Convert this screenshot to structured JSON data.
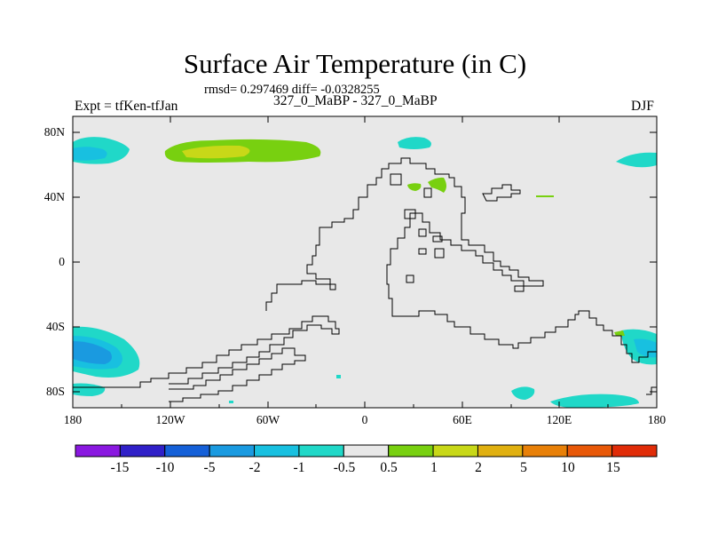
{
  "title": "Surface Air Temperature (in C)",
  "subtitle": "rmsd= 0.297469 diff= -0.0328255",
  "left_label": "Expt = tfKen-tfJan",
  "center_label": "327_0_MaBP - 327_0_MaBP",
  "right_label": "DJF",
  "map": {
    "background": "#e8e8e8",
    "y_ticks": [
      "80N",
      "40N",
      "0",
      "40S",
      "80S"
    ],
    "x_ticks": [
      "180",
      "120W",
      "60W",
      "0",
      "60E",
      "120E",
      "180"
    ]
  },
  "colorbar": {
    "labels": [
      "-15",
      "-10",
      "-5",
      "-2",
      "-1",
      "-0.5",
      "0.5",
      "1",
      "2",
      "5",
      "10",
      "15"
    ],
    "colors": [
      "#8a18e0",
      "#3020c8",
      "#1560d8",
      "#1a9ae0",
      "#18c0e0",
      "#20d8c8",
      "#e8e8e8",
      "#78d010",
      "#c8d818",
      "#e0b010",
      "#e88008",
      "#e85808",
      "#e02c08"
    ]
  }
}
